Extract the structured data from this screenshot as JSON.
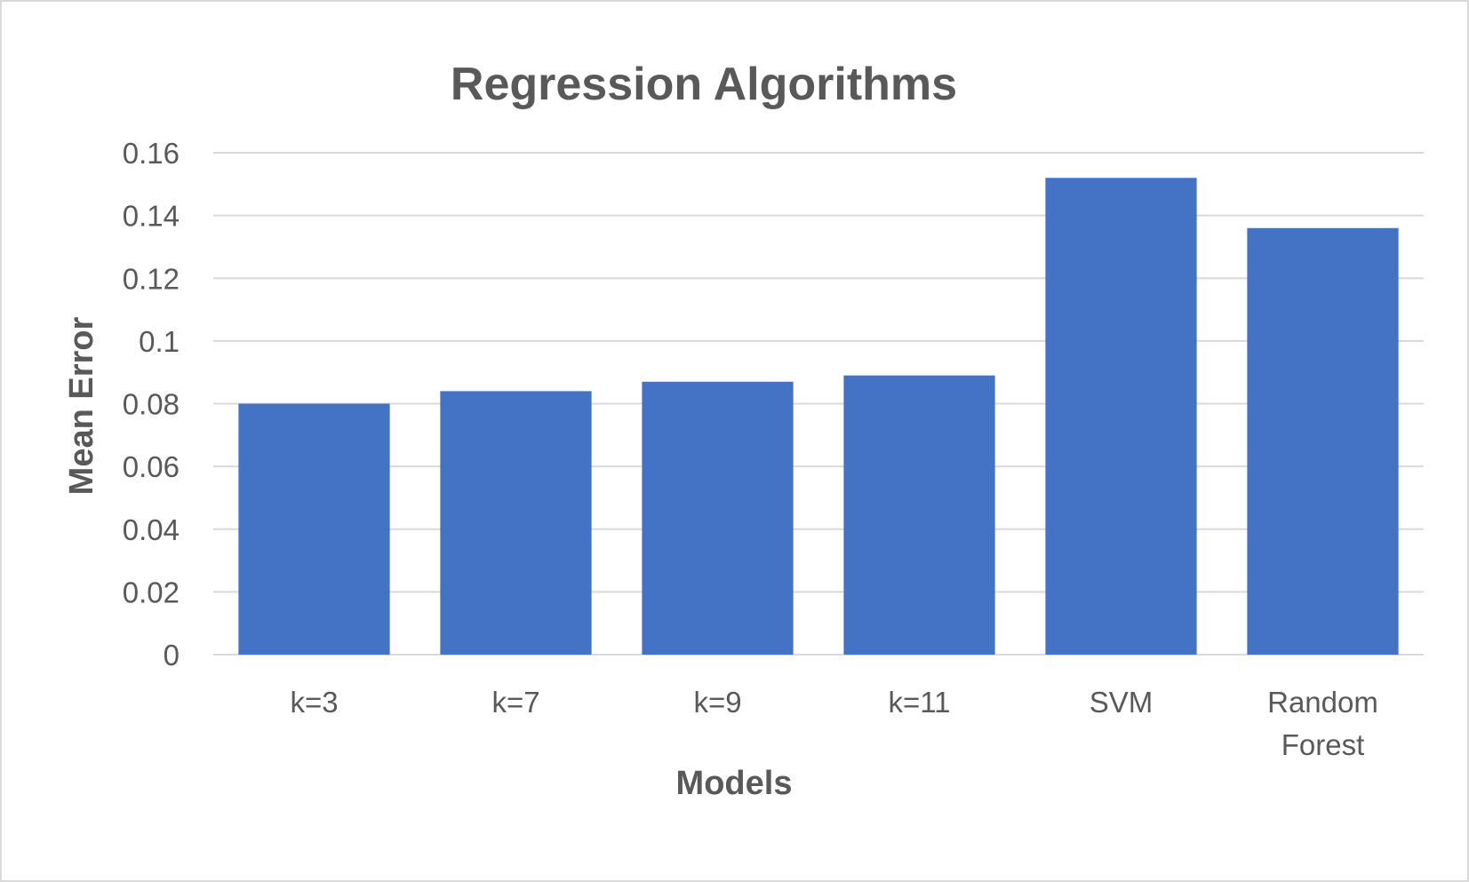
{
  "chart_data": {
    "type": "bar",
    "title": "Regression Algorithms",
    "xlabel": "Models",
    "ylabel": "Mean Error",
    "categories": [
      "k=3",
      "k=7",
      "k=9",
      "k=11",
      "SVM",
      "Random Forest"
    ],
    "values": [
      0.08,
      0.084,
      0.087,
      0.089,
      0.152,
      0.136
    ],
    "ylim": [
      0,
      0.16
    ],
    "yticks": [
      "0",
      "0.02",
      "0.04",
      "0.06",
      "0.08",
      "0.1",
      "0.12",
      "0.14",
      "0.16"
    ],
    "grid": true,
    "legend": "none",
    "bar_color": "#4472c4"
  }
}
